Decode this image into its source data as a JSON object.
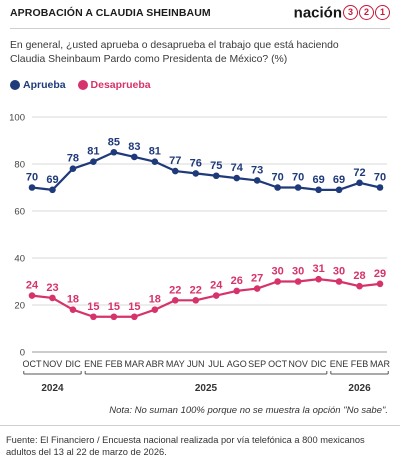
{
  "header": {
    "title": "APROBACIÓN A CLAUDIA SHEINBAUM",
    "brand_word": "nación",
    "brand_digits": [
      "3",
      "2",
      "1"
    ]
  },
  "question": "En general, ¿usted aprueba o desaprueba el trabajo que está haciendo Claudia Sheinbaum Pardo como Presidenta de México? (%)",
  "legend": [
    {
      "label": "Aprueba",
      "color": "#1f3a7a"
    },
    {
      "label": "Desaprueba",
      "color": "#d6326b"
    }
  ],
  "note": "Nota: No suman 100% porque no se muestra la opción \"No sabe\".",
  "source": "Fuente: El Financiero / Encuesta nacional realizada por vía telefónica a 800 mexicanos adultos del 13 al 22 de marzo de 2026.",
  "chart_data": {
    "type": "line",
    "title": "APROBACIÓN A CLAUDIA SHEINBAUM",
    "categories": [
      "OCT",
      "NOV",
      "DIC",
      "ENE",
      "FEB",
      "MAR",
      "ABR",
      "MAY",
      "JUN",
      "JUL",
      "AGO",
      "SEP",
      "OCT",
      "NOV",
      "DIC",
      "ENE",
      "FEB",
      "MAR"
    ],
    "year_groups": [
      {
        "label": "2024",
        "start": 0,
        "end": 2
      },
      {
        "label": "2025",
        "start": 3,
        "end": 14
      },
      {
        "label": "2026",
        "start": 15,
        "end": 17
      }
    ],
    "series": [
      {
        "name": "Aprueba",
        "color": "#1f3a7a",
        "values": [
          70,
          69,
          78,
          81,
          85,
          83,
          81,
          77,
          76,
          75,
          74,
          73,
          70,
          70,
          69,
          69,
          72,
          70
        ]
      },
      {
        "name": "Desaprueba",
        "color": "#d6326b",
        "values": [
          24,
          23,
          18,
          15,
          15,
          15,
          18,
          22,
          22,
          24,
          26,
          27,
          30,
          30,
          31,
          30,
          28,
          29
        ]
      }
    ],
    "ylim": [
      0,
      100
    ],
    "yticks": [
      0,
      20,
      40,
      60,
      80,
      100
    ],
    "grid": true,
    "legend_position": "top-left"
  }
}
